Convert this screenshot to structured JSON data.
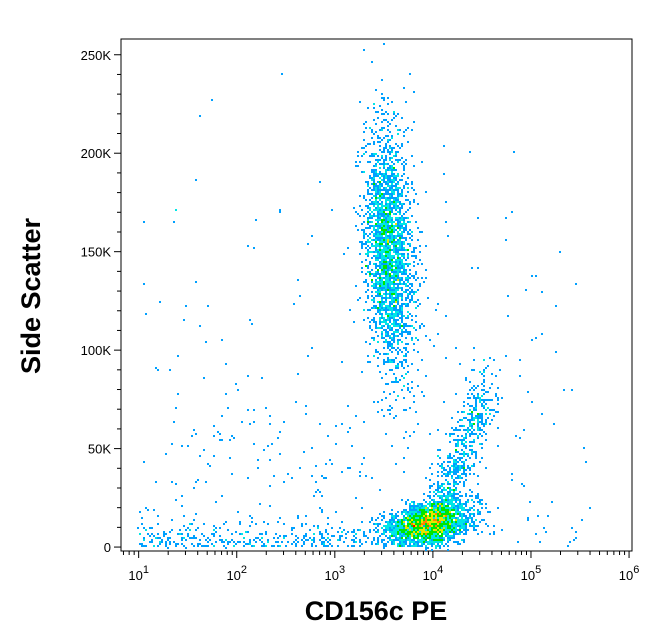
{
  "chart_data": {
    "type": "scatter",
    "subtype": "flow-cytometry density dot plot",
    "xlabel": "CD156c PE",
    "ylabel": "Side Scatter",
    "xscale": "log",
    "xlim_log10": [
      0.82,
      6.03
    ],
    "ylim": [
      -2000,
      258000
    ],
    "x_ticks": [
      {
        "exp": 1,
        "base": "10",
        "sup": "1"
      },
      {
        "exp": 2,
        "base": "10",
        "sup": "2"
      },
      {
        "exp": 3,
        "base": "10",
        "sup": "3"
      },
      {
        "exp": 4,
        "base": "10",
        "sup": "4"
      },
      {
        "exp": 5,
        "base": "10",
        "sup": "5"
      },
      {
        "exp": 6,
        "base": "10",
        "sup": "6"
      }
    ],
    "y_ticks": [
      {
        "value": 0,
        "label": "0"
      },
      {
        "value": 50000,
        "label": "50K"
      },
      {
        "value": 100000,
        "label": "100K"
      },
      {
        "value": 150000,
        "label": "150K"
      },
      {
        "value": 200000,
        "label": "200K"
      },
      {
        "value": 250000,
        "label": "250K"
      }
    ],
    "populations": [
      {
        "name": "SSC-high cluster",
        "center_log10_x": 3.55,
        "center_y": 150000,
        "spread_log10_x": 0.12,
        "spread_y": 30000,
        "events": 2600
      },
      {
        "name": "SSC-low cluster",
        "center_log10_x": 3.95,
        "center_y": 12000,
        "spread_log10_x": 0.22,
        "spread_y": 5000,
        "events": 2400
      },
      {
        "name": "CD156c-high tail",
        "center_log10_x": 4.45,
        "center_y": 35000,
        "spread_log10_x": 0.08,
        "spread_y": 20000,
        "events": 900
      },
      {
        "name": "low-intensity scatter",
        "center_log10_x": 2.0,
        "center_y": 10000,
        "spread_log10_x": 0.6,
        "spread_y": 12000,
        "events": 350
      }
    ],
    "colormap": [
      "#0000ff",
      "#00a0ff",
      "#00e6e6",
      "#00e600",
      "#e6e600",
      "#ff8000",
      "#ff0000"
    ]
  }
}
